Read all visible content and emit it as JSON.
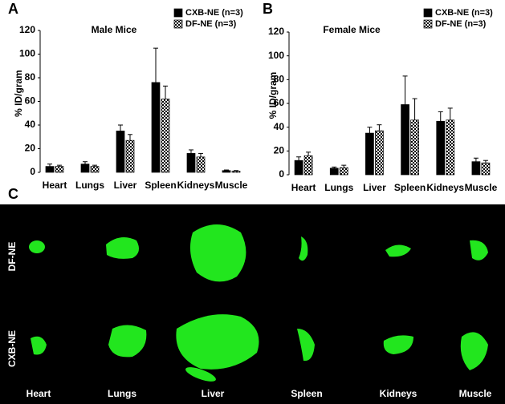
{
  "chart_data": [
    {
      "type": "bar",
      "panel_label": "A",
      "title": "Male Mice",
      "ylabel": "% ID/gram",
      "categories": [
        "Heart",
        "Lungs",
        "Liver",
        "Spleen",
        "Kidneys",
        "Muscle"
      ],
      "series": [
        {
          "name": "CXB-NE (n=3)",
          "color": "#000000",
          "pattern": "solid",
          "values": [
            5,
            7,
            35,
            76,
            16,
            1.5
          ],
          "errors": [
            2,
            2,
            5,
            29,
            3,
            0.5
          ]
        },
        {
          "name": "DF-NE (n=3)",
          "color": "#000000",
          "pattern": "checker",
          "values": [
            5,
            5,
            27,
            62,
            13,
            1
          ],
          "errors": [
            1,
            1,
            5,
            11,
            3,
            0.5
          ]
        }
      ],
      "ylim": [
        0,
        120
      ],
      "yticks": [
        0,
        20,
        40,
        60,
        80,
        100,
        120
      ],
      "legend": "upper right"
    },
    {
      "type": "bar",
      "panel_label": "B",
      "title": "Female Mice",
      "ylabel": "% ID/gram",
      "categories": [
        "Heart",
        "Lungs",
        "Liver",
        "Spleen",
        "Kidneys",
        "Muscle"
      ],
      "series": [
        {
          "name": "CXB-NE (n=3)",
          "color": "#000000",
          "pattern": "solid",
          "values": [
            12,
            5.5,
            35,
            59,
            45,
            11
          ],
          "errors": [
            3,
            1,
            5,
            24,
            8,
            3
          ]
        },
        {
          "name": "DF-NE (n=3)",
          "color": "#000000",
          "pattern": "checker",
          "values": [
            16,
            6,
            37,
            46,
            46,
            10
          ],
          "errors": [
            3,
            2,
            5,
            18,
            10,
            2
          ]
        }
      ],
      "ylim": [
        0,
        120
      ],
      "yticks": [
        0,
        20,
        40,
        60,
        80,
        100,
        120
      ],
      "legend": "upper right"
    }
  ],
  "images": {
    "panel_label": "C",
    "rows": [
      "DF-NE",
      "CXB-NE"
    ],
    "columns": [
      "Heart",
      "Lungs",
      "Liver",
      "Spleen",
      "Kidneys",
      "Muscle"
    ]
  }
}
